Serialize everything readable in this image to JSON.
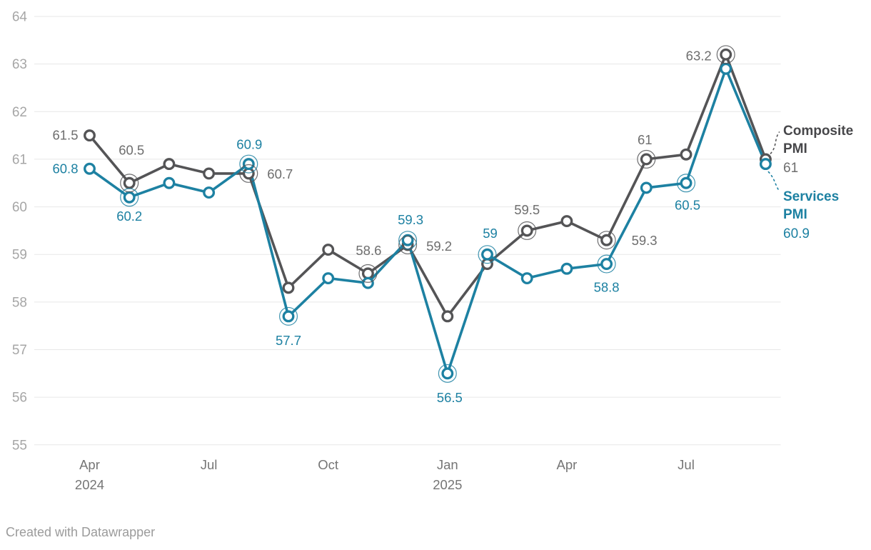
{
  "footer": {
    "credit": "Created with Datawrapper"
  },
  "palette": {
    "background": "#ffffff",
    "grid": "#e7e7e7",
    "y_tick": "#a6a6a6",
    "x_tick": "#757575",
    "credit": "#9b9b9b"
  },
  "chart_data": {
    "type": "line",
    "title": "",
    "xlabel": "",
    "ylabel": "",
    "x": [
      "Apr 2024",
      "May 2024",
      "Jun 2024",
      "Jul 2024",
      "Aug 2024",
      "Sep 2024",
      "Oct 2024",
      "Nov 2024",
      "Dec 2024",
      "Jan 2025",
      "Feb 2025",
      "Mar 2025",
      "Apr 2025",
      "May 2025",
      "Jun 2025",
      "Jul 2025",
      "Aug 2025",
      "Sep 2025"
    ],
    "ylim": [
      55,
      64
    ],
    "yticks": [
      55,
      56,
      57,
      58,
      59,
      60,
      61,
      62,
      63,
      64
    ],
    "xticks": [
      {
        "index": 0,
        "line1": "Apr",
        "line2": "2024"
      },
      {
        "index": 3,
        "line1": "Jul",
        "line2": ""
      },
      {
        "index": 6,
        "line1": "Oct",
        "line2": ""
      },
      {
        "index": 9,
        "line1": "Jan",
        "line2": "2025"
      },
      {
        "index": 12,
        "line1": "Apr",
        "line2": ""
      },
      {
        "index": 15,
        "line1": "Jul",
        "line2": ""
      }
    ],
    "grid": "horizontal",
    "legend_position": "right",
    "series": [
      {
        "name": "Composite PMI",
        "color": "#545456",
        "label_color": "#6e6e6e",
        "legend_name_color": "#47474a",
        "legend_name_lines": [
          "Composite",
          "PMI"
        ],
        "legend_value": "61",
        "values": [
          61.5,
          60.5,
          60.9,
          60.7,
          60.7,
          58.3,
          59.1,
          58.6,
          59.2,
          57.7,
          58.8,
          59.5,
          59.7,
          59.3,
          61,
          61.1,
          63.2,
          61
        ],
        "point_labels": [
          {
            "index": 0,
            "text": "61.5",
            "pos": "left",
            "ring": false,
            "dx": -16,
            "dy": 6
          },
          {
            "index": 1,
            "text": "60.5",
            "pos": "above",
            "ring": true,
            "dx": 3,
            "dy": -40
          },
          {
            "index": 4,
            "text": "60.7",
            "pos": "right",
            "ring": true,
            "dx": 26,
            "dy": 7
          },
          {
            "index": 7,
            "text": "58.6",
            "pos": "above",
            "ring": true,
            "dx": 1,
            "dy": -26
          },
          {
            "index": 8,
            "text": "59.2",
            "pos": "right",
            "ring": true,
            "dx": 26,
            "dy": 8
          },
          {
            "index": 11,
            "text": "59.5",
            "pos": "above",
            "ring": true,
            "dx": 0,
            "dy": -23
          },
          {
            "index": 13,
            "text": "59.3",
            "pos": "right",
            "ring": true,
            "dx": 35,
            "dy": 7
          },
          {
            "index": 14,
            "text": "61",
            "pos": "above",
            "ring": true,
            "dx": -2,
            "dy": -21
          },
          {
            "index": 16,
            "text": "63.2",
            "pos": "left",
            "ring": true,
            "dx": -20,
            "dy": 8
          }
        ]
      },
      {
        "name": "Services PMI",
        "color": "#1d81a2",
        "label_color": "#1d81a2",
        "legend_name_color": "#1d81a2",
        "legend_name_lines": [
          "Services",
          "PMI"
        ],
        "legend_value": "60.9",
        "values": [
          60.8,
          60.2,
          60.5,
          60.3,
          60.9,
          57.7,
          58.5,
          58.4,
          59.3,
          56.5,
          59,
          58.5,
          58.7,
          58.8,
          60.4,
          60.5,
          62.9,
          60.9
        ],
        "point_labels": [
          {
            "index": 0,
            "text": "60.8",
            "pos": "left",
            "ring": false,
            "dx": -16,
            "dy": 6
          },
          {
            "index": 1,
            "text": "60.2",
            "pos": "below",
            "ring": true,
            "dx": 0,
            "dy": 33
          },
          {
            "index": 4,
            "text": "60.9",
            "pos": "above",
            "ring": true,
            "dx": 1,
            "dy": -21
          },
          {
            "index": 5,
            "text": "57.7",
            "pos": "below",
            "ring": true,
            "dx": 0,
            "dy": 40
          },
          {
            "index": 8,
            "text": "59.3",
            "pos": "above",
            "ring": true,
            "dx": 4,
            "dy": -22
          },
          {
            "index": 9,
            "text": "56.5",
            "pos": "below",
            "ring": true,
            "dx": 3,
            "dy": 40
          },
          {
            "index": 10,
            "text": "59",
            "pos": "above",
            "ring": true,
            "dx": 4,
            "dy": -23
          },
          {
            "index": 13,
            "text": "58.8",
            "pos": "below",
            "ring": true,
            "dx": 0,
            "dy": 39
          },
          {
            "index": 15,
            "text": "60.5",
            "pos": "below",
            "ring": true,
            "dx": 2,
            "dy": 37
          }
        ]
      }
    ]
  }
}
